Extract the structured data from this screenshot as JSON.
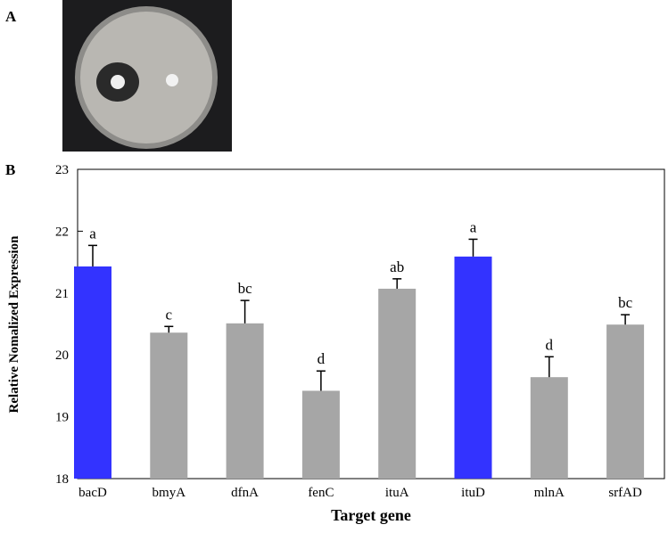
{
  "panel_labels": [
    "A",
    "B"
  ],
  "chart_data": {
    "type": "bar",
    "y_label": "Relative Nomalized Expression",
    "x_label": "Target gene",
    "categories": [
      "bacD",
      "bmyA",
      "dfnA",
      "fenC",
      "ituA",
      "ituD",
      "mlnA",
      "srfAD"
    ],
    "values": [
      21.43,
      20.36,
      20.51,
      19.42,
      21.07,
      21.59,
      19.64,
      20.49
    ],
    "errors": [
      0.34,
      0.1,
      0.37,
      0.32,
      0.16,
      0.28,
      0.33,
      0.16
    ],
    "letters": [
      "a",
      "c",
      "bc",
      "d",
      "ab",
      "a",
      "d",
      "bc"
    ],
    "colors": [
      "#3333ff",
      "#a6a6a6",
      "#a6a6a6",
      "#a6a6a6",
      "#a6a6a6",
      "#3333ff",
      "#a6a6a6",
      "#a6a6a6"
    ],
    "ylim": [
      18,
      23
    ],
    "yticks": [
      18,
      19,
      20,
      21,
      22,
      23
    ]
  }
}
